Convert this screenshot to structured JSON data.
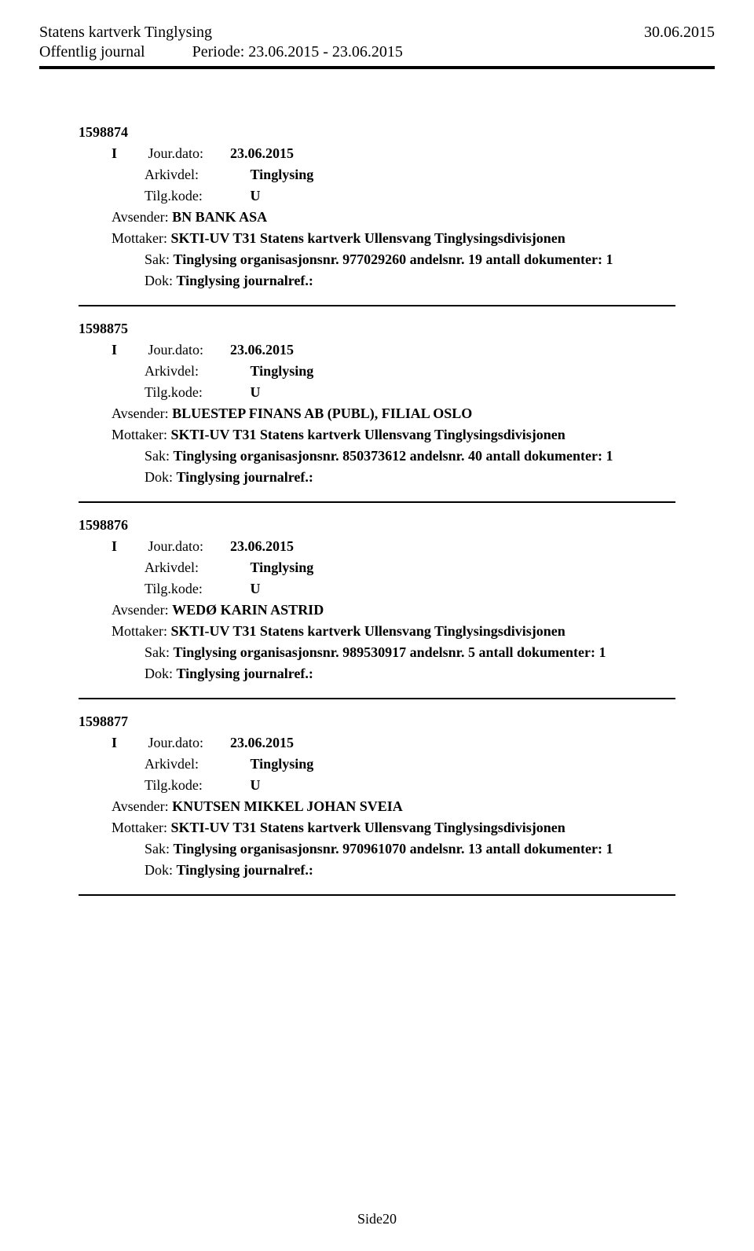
{
  "header": {
    "title": "Statens kartverk Tinglysing",
    "date": "30.06.2015",
    "subtitle": "Offentlig journal",
    "period_label": "Periode: 23.06.2015 - 23.06.2015"
  },
  "labels": {
    "jour_dato": "Jour.dato:",
    "arkivdel": "Arkivdel:",
    "tilg_kode": "Tilg.kode:",
    "avsender": "Avsender:",
    "mottaker": "Mottaker:",
    "sak": "Sak:",
    "dok": "Dok:"
  },
  "common": {
    "jour_dato_value": "23.06.2015",
    "arkivdel_value": "Tinglysing",
    "tilg_kode_value": "U",
    "mottaker_value": "SKTI-UV T31 Statens kartverk Ullensvang Tinglysingsdivisjonen",
    "dok_value": "Tinglysing journalref.:",
    "dir": "I"
  },
  "entries": [
    {
      "id": "1598874",
      "avsender": "BN BANK ASA",
      "sak": "Tinglysing organisasjonsnr. 977029260 andelsnr. 19 antall dokumenter: 1"
    },
    {
      "id": "1598875",
      "avsender": "BLUESTEP FINANS AB (PUBL), FILIAL OSLO",
      "sak": "Tinglysing organisasjonsnr. 850373612 andelsnr. 40 antall dokumenter: 1"
    },
    {
      "id": "1598876",
      "avsender": "WEDØ KARIN ASTRID",
      "sak": "Tinglysing organisasjonsnr. 989530917 andelsnr. 5 antall dokumenter: 1"
    },
    {
      "id": "1598877",
      "avsender": "KNUTSEN MIKKEL JOHAN SVEIA",
      "sak": "Tinglysing organisasjonsnr. 970961070 andelsnr. 13 antall dokumenter: 1"
    }
  ],
  "footer": {
    "page": "Side20"
  }
}
